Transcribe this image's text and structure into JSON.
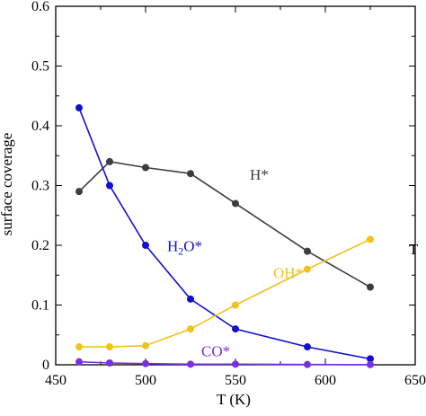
{
  "chart_data": {
    "type": "line",
    "xlabel": "T (K)",
    "ylabel": "surface coverage",
    "xlim": [
      450,
      650
    ],
    "ylim": [
      0,
      0.6
    ],
    "x_ticks": [
      450,
      500,
      550,
      600,
      650
    ],
    "y_ticks": [
      0,
      0.1,
      0.2,
      0.3,
      0.4,
      0.5,
      0.6
    ],
    "x_tick_labels": [
      "450",
      "500",
      "550",
      "600",
      "650"
    ],
    "y_tick_labels": [
      "0",
      "0.1",
      "0.2",
      "0.3",
      "0.4",
      "0.5",
      "0.6"
    ],
    "grid": false,
    "series": [
      {
        "name": "H*",
        "color": "#3d3d3d",
        "x": [
          463,
          480,
          500,
          525,
          550,
          590,
          625
        ],
        "values": [
          0.29,
          0.34,
          0.33,
          0.32,
          0.27,
          0.19,
          0.13
        ]
      },
      {
        "name": "H2O*",
        "color": "#1010d0",
        "x": [
          463,
          480,
          500,
          525,
          550,
          590,
          625
        ],
        "values": [
          0.43,
          0.3,
          0.2,
          0.11,
          0.06,
          0.03,
          0.01
        ]
      },
      {
        "name": "OH*",
        "color": "#f2c21a",
        "x": [
          463,
          480,
          500,
          525,
          550,
          590,
          625
        ],
        "values": [
          0.03,
          0.03,
          0.032,
          0.06,
          0.1,
          0.16,
          0.21
        ]
      },
      {
        "name": "CO*",
        "color": "#7a2fe0",
        "x": [
          463,
          480,
          500,
          525,
          550,
          590,
          625
        ],
        "values": [
          0.005,
          0.003,
          0.002,
          0.001,
          0.001,
          0.0005,
          0.0003
        ]
      }
    ],
    "annotations": [
      {
        "series": "H*",
        "text": "H*",
        "x": 558,
        "y": 0.31
      },
      {
        "series": "H2O*",
        "text_main": "H",
        "text_sub": "2",
        "text_rest": "O*",
        "x": 512,
        "y": 0.19
      },
      {
        "series": "OH*",
        "text": "OH*",
        "x": 571,
        "y": 0.145
      },
      {
        "series": "CO*",
        "text": "CO*",
        "x": 531,
        "y": 0.014
      }
    ],
    "stray_label": "T"
  }
}
